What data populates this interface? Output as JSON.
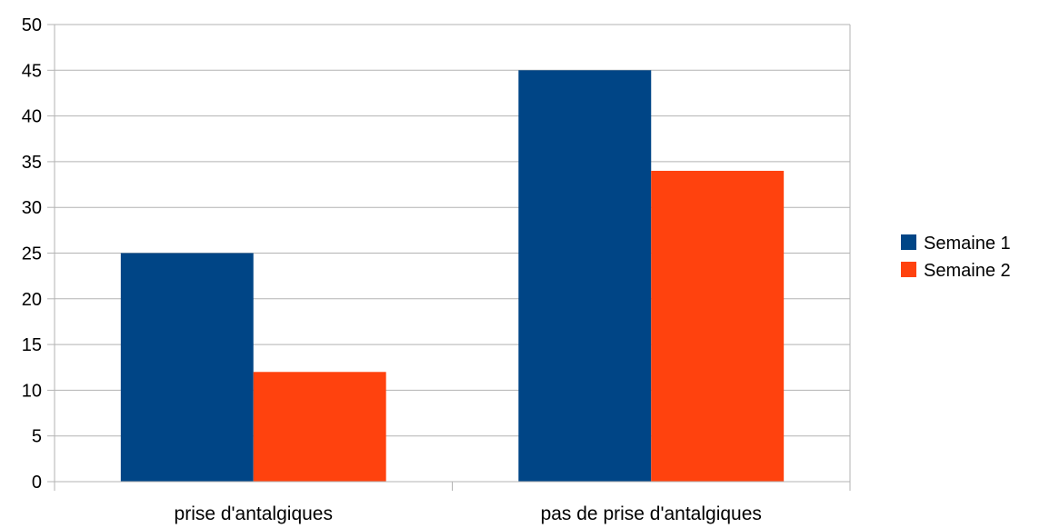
{
  "chart_data": {
    "type": "bar",
    "categories": [
      "prise d'antalgiques",
      "pas de prise d'antalgiques"
    ],
    "series": [
      {
        "name": "Semaine 1",
        "values": [
          25,
          45
        ],
        "color": "#004586"
      },
      {
        "name": "Semaine 2",
        "values": [
          12,
          34
        ],
        "color": "#ff420e"
      }
    ],
    "ylim": [
      0,
      50
    ],
    "yticks": [
      0,
      5,
      10,
      15,
      20,
      25,
      30,
      35,
      40,
      45,
      50
    ],
    "grid": true,
    "legend_position": "right",
    "title": "",
    "xlabel": "",
    "ylabel": ""
  }
}
